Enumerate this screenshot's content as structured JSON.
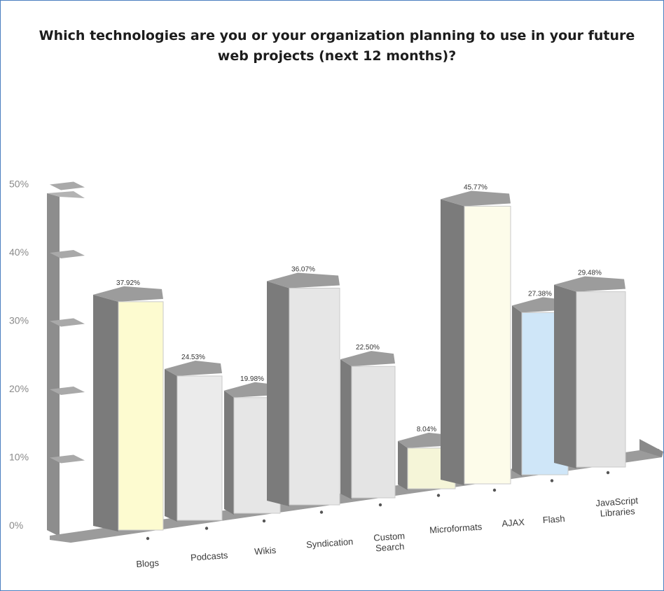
{
  "chart_data": {
    "type": "bar",
    "title": "Which technologies are you or your organization planning to use in your future web projects (next 12 months)?",
    "categories": [
      [
        "Blogs"
      ],
      [
        "Podcasts"
      ],
      [
        "Wikis"
      ],
      [
        "Syndication"
      ],
      [
        "Custom",
        "Search"
      ],
      [
        "Microformats"
      ],
      [
        "AJAX"
      ],
      [
        "Flash"
      ],
      [
        "JavaScript",
        "Libraries"
      ]
    ],
    "values": [
      37.92,
      24.53,
      19.98,
      36.07,
      22.5,
      8.04,
      45.77,
      27.38,
      29.48
    ],
    "value_labels": [
      "37.92%",
      "24.53%",
      "19.98%",
      "36.07%",
      "22.50%",
      "8.04%",
      "45.77%",
      "27.38%",
      "29.48%"
    ],
    "front_colors": [
      "#fdfbd0",
      "#ebebeb",
      "#e6e6e6",
      "#e6e6e6",
      "#e4e4e4",
      "#f5f5d8",
      "#fdfcea",
      "#cfe6f8",
      "#e3e3e3"
    ],
    "y_ticks": [
      "0%",
      "10%",
      "20%",
      "30%",
      "40%",
      "50%"
    ],
    "ylim": [
      0,
      50
    ],
    "xlabel": "",
    "ylabel": "",
    "legend": "none"
  }
}
